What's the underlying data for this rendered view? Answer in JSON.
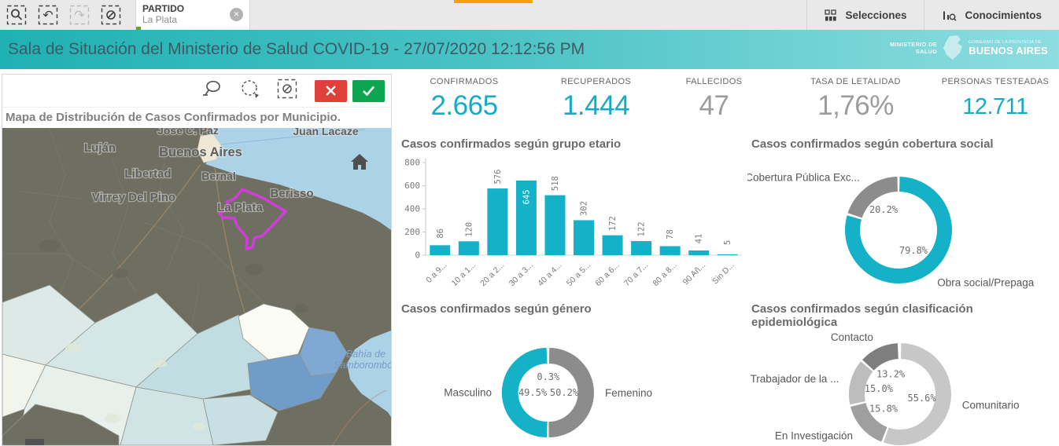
{
  "toolbar": {
    "filter_chip": {
      "field": "PARTIDO",
      "value": "La Plata"
    },
    "selections_label": "Selecciones",
    "insights_label": "Conocimientos"
  },
  "header": {
    "title": "Sala de Situación del Ministerio de Salud COVID-19 - 27/07/2020 12:12:56 PM",
    "logo": {
      "ministry_line1": "MINISTERIO DE",
      "ministry_line2": "SALUD",
      "gov_line": "GOBIERNO DE LA PROVINCIA DE",
      "province": "BUENOS AIRES"
    }
  },
  "map": {
    "title": "Mapa de Distribución de Casos Confirmados por Municipio.",
    "labels": {
      "jose_c_paz": "José C. Paz",
      "juan_lacaze": "Juan Lacaze",
      "lujan": "Luján",
      "buenos_aires": "Buenos Aires",
      "libertad": "Libertad",
      "bernal": "Bernal",
      "virrey_del_pino": "Virrey Del Pino",
      "la_plata": "La Plata",
      "berisso": "Berisso",
      "bahia_line1": "Bahía de",
      "bahia_line2": "Samborombón"
    }
  },
  "kpis": [
    {
      "label": "CONFIRMADOS",
      "value": "2.665",
      "color": "#16abc5"
    },
    {
      "label": "RECUPERADOS",
      "value": "1.444",
      "color": "#16abc5"
    },
    {
      "label": "FALLECIDOS",
      "value": "47",
      "color": "#9c9c9c"
    },
    {
      "label": "TASA DE LETALIDAD",
      "value": "1,76%",
      "color": "#9c9c9c"
    },
    {
      "label": "PERSONAS TESTEADAS",
      "value": "12.711",
      "color": "#16abc5"
    }
  ],
  "chart_data": [
    {
      "type": "bar",
      "title": "Casos confirmados según grupo etario",
      "categories": [
        "0 a 9...",
        "10 a 1...",
        "20 a 2...",
        "30 a 3...",
        "40 a 4...",
        "50 a 5...",
        "60 a 6...",
        "70 a 7...",
        "80 a 8...",
        "90 Añ...",
        "Sin D..."
      ],
      "values": [
        86,
        120,
        576,
        645,
        518,
        302,
        172,
        122,
        78,
        41,
        5
      ],
      "xlabel": "",
      "ylabel": "",
      "ylim": [
        0,
        800
      ],
      "yticks": [
        0,
        200,
        400,
        600,
        800
      ],
      "grid": false,
      "bar_color": "#14b1c9"
    },
    {
      "type": "donut",
      "title": "Casos confirmados según cobertura social",
      "slices": [
        {
          "label": "Obra social/Prepaga",
          "pct": 79.8,
          "color": "#14b1c9"
        },
        {
          "label": "Cobertura Pública Exc...",
          "pct": 20.2,
          "color": "#8c8c8c"
        }
      ]
    },
    {
      "type": "donut",
      "title": "Casos confirmados según género",
      "slices": [
        {
          "label": "Femenino",
          "pct": 50.2,
          "color": "#8c8c8c"
        },
        {
          "label": "Masculino",
          "pct": 49.5,
          "color": "#14b1c9"
        },
        {
          "label": "",
          "pct": 0.3,
          "color": "#e2e2e2"
        }
      ]
    },
    {
      "type": "donut",
      "title": "Casos confirmados según clasificación epidemiológica",
      "slices": [
        {
          "label": "Comunitario",
          "pct": 55.6,
          "color": "#c7c7c7"
        },
        {
          "label": "En Investigación",
          "pct": 15.8,
          "color": "#9f9f9f"
        },
        {
          "label": "Trabajador de la ...",
          "pct": 15.0,
          "color": "#bdbdbd"
        },
        {
          "label": "Contacto",
          "pct": 13.2,
          "color": "#7e7e7e"
        }
      ]
    }
  ]
}
